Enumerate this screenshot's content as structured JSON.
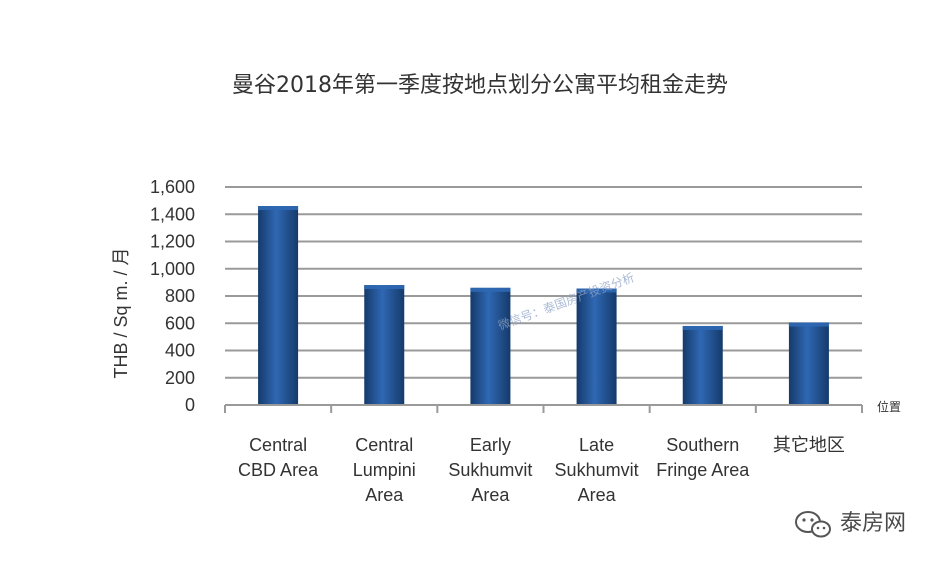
{
  "colors": {
    "bar": "#1f4e8c",
    "bar_light": "#2f68b3",
    "bar_dark": "#153a6b",
    "grid": "#9a9a9a",
    "axis": "#9a9a9a",
    "text": "#333333"
  },
  "watermark": "微信号：泰国房产投资分析",
  "brand": {
    "text": "泰房网",
    "icon": "wechat-logo-icon"
  },
  "chart_data": {
    "type": "bar",
    "title": "曼谷2018年第一季度按地点划分公寓平均租金走势",
    "xlabel": "位置",
    "ylabel": "THB / Sq m. / 月",
    "ylim": [
      0,
      1600
    ],
    "yticks": [
      0,
      200,
      400,
      600,
      800,
      1000,
      1200,
      1400,
      1600
    ],
    "ytick_labels": [
      "0",
      "200",
      "400",
      "600",
      "800",
      "1,000",
      "1,200",
      "1,400",
      "1,600"
    ],
    "grid": true,
    "categories": [
      [
        "Central",
        "CBD Area"
      ],
      [
        "Central",
        "Lumpini",
        "Area"
      ],
      [
        "Early",
        "Sukhumvit",
        "Area"
      ],
      [
        "Late",
        "Sukhumvit",
        "Area"
      ],
      [
        "Southern",
        "Fringe Area"
      ],
      [
        "其它地区"
      ]
    ],
    "values": [
      1460,
      880,
      860,
      855,
      580,
      605
    ]
  }
}
